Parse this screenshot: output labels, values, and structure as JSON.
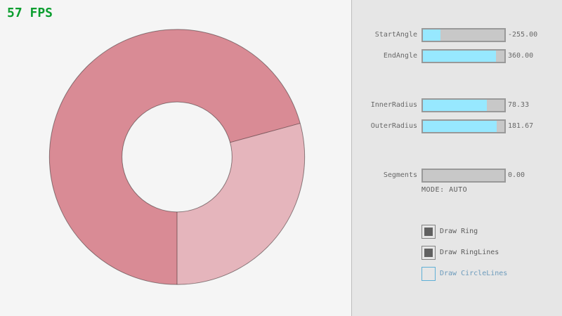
{
  "fps": {
    "text": "57 FPS"
  },
  "colors": {
    "background": "#f5f5f5",
    "panel": "#e6e6e6",
    "divider": "#bdbdbd",
    "accent_slider_fill": "#97e8ff",
    "slider_track": "#c8c8c8",
    "slider_border": "#999999",
    "text": "#686868",
    "text_dark": "#5c5c5c",
    "fps_green": "#0b9e2f",
    "check_border": "#838383",
    "check_fill": "#616161",
    "focus_border": "#5fb0d6",
    "focus_text": "#6c9bbc",
    "ring_single_pass": "#e5b5bc",
    "ring_double_pass": "#d98b95",
    "ring_line": "rgba(0,0,0,0.42)"
  },
  "ring": {
    "start_angle": -255.0,
    "end_angle": 360.0,
    "inner_radius": 78.33,
    "outer_radius": 181.67,
    "segments": 0,
    "light_sector_start_deg": -15.3,
    "light_sector_end_deg": 90
  },
  "panel": {
    "sliders": [
      {
        "id": "start-angle",
        "label": "StartAngle",
        "value": "-255.00",
        "fill_pct": 21.7
      },
      {
        "id": "end-angle",
        "label": "EndAngle",
        "value": "360.00",
        "fill_pct": 90.0
      },
      {
        "id": "inner-radius",
        "label": "InnerRadius",
        "value": "78.33",
        "fill_pct": 78.3
      },
      {
        "id": "outer-radius",
        "label": "OuterRadius",
        "value": "181.67",
        "fill_pct": 90.8
      },
      {
        "id": "segments",
        "label": "Segments",
        "value": "0.00",
        "fill_pct": 0.0
      }
    ],
    "mode_text": "MODE: AUTO",
    "checkboxes": [
      {
        "id": "draw-ring",
        "label": "Draw Ring",
        "checked": true
      },
      {
        "id": "draw-ring-lines",
        "label": "Draw RingLines",
        "checked": true
      },
      {
        "id": "draw-circle-lines",
        "label": "Draw CircleLines",
        "checked": false
      }
    ]
  }
}
